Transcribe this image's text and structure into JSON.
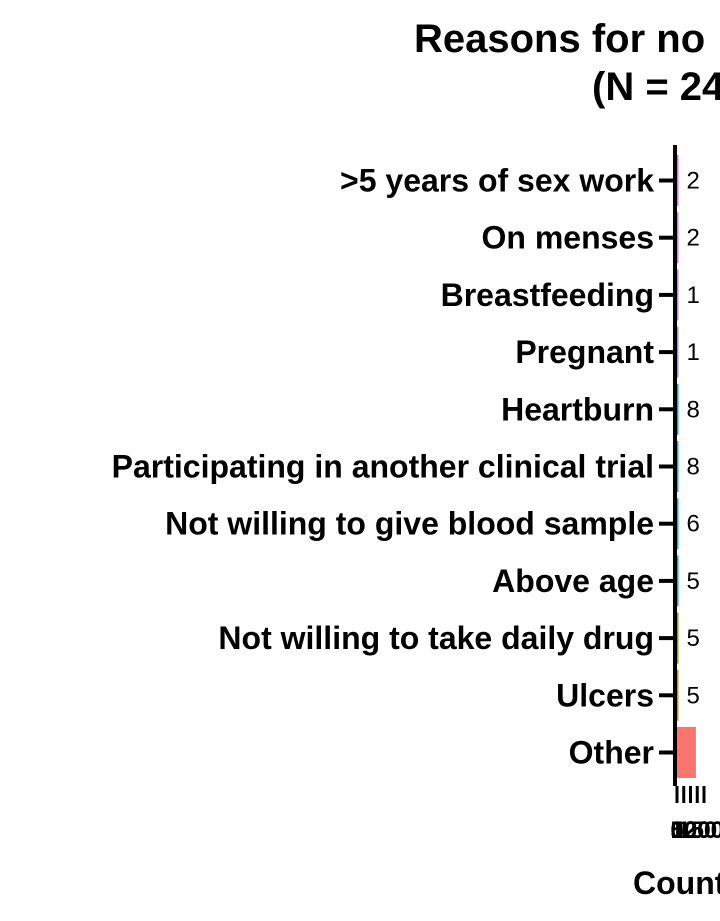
{
  "chart_data": {
    "type": "bar",
    "orientation": "horizontal",
    "title_lines": [
      "Reasons for no",
      "(N = 24"
    ],
    "xlabel": "Count",
    "ylabel": "",
    "categories": [
      ">5 years of sex work",
      "On menses",
      "Breastfeeding",
      "Pregnant",
      "Heartburn",
      "Participating in another clinical trial",
      "Not willing to give blood sample",
      "Above age",
      "Not willing to take daily drug",
      "Ulcers",
      "Other"
    ],
    "values": [
      2,
      2,
      1,
      1,
      8,
      8,
      6,
      5,
      5,
      5,
      140
    ],
    "value_labels": [
      "2",
      "2",
      "1",
      "1",
      "8",
      "8",
      "6",
      "5",
      "5",
      "5",
      ""
    ],
    "bar_colors": [
      "#ED68ED",
      "#D774F0",
      "#B985F4",
      "#8B93FF",
      "#00A9FF",
      "#00BCD8",
      "#00BFC4",
      "#00C08B",
      "#7CAE00",
      "#C49A00",
      "#F8766D"
    ],
    "xlim": [
      0,
      200
    ],
    "x_ticks": [
      0,
      50,
      100,
      150,
      200
    ],
    "grid": false,
    "legend": "none"
  }
}
